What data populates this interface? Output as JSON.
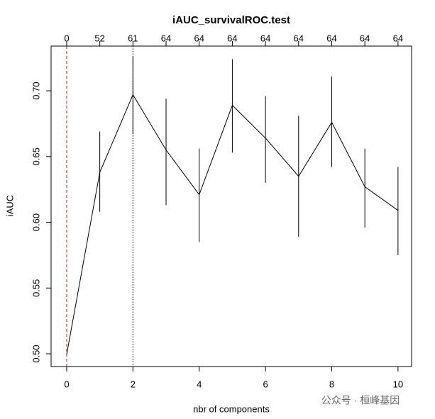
{
  "chart_data": {
    "type": "line",
    "title": "iAUC_survivalROC.test",
    "x_label": "nbr of components",
    "y_label": "iAUC",
    "x": [
      0,
      1,
      2,
      3,
      4,
      5,
      6,
      7,
      8,
      9,
      10
    ],
    "series": [
      {
        "name": "iAUC",
        "color": "#000000",
        "values": [
          0.4995,
          0.638,
          0.697,
          0.655,
          0.621,
          0.689,
          0.664,
          0.635,
          0.676,
          0.627,
          0.609
        ],
        "lower": [
          0.4995,
          0.608,
          0.667,
          0.613,
          0.585,
          0.653,
          0.63,
          0.589,
          0.642,
          0.596,
          0.575
        ],
        "upper": [
          0.4995,
          0.669,
          0.726,
          0.694,
          0.656,
          0.724,
          0.696,
          0.681,
          0.711,
          0.656,
          0.642
        ]
      }
    ],
    "top_labels": [
      "0",
      "52",
      "61",
      "64",
      "64",
      "64",
      "64",
      "64",
      "64",
      "64",
      "64"
    ],
    "vlines": [
      {
        "x": 0,
        "color": "#e41a1c",
        "style": "dashed"
      },
      {
        "x": 2,
        "color": "#000000",
        "style": "dotted"
      }
    ],
    "xlim": [
      -0.47,
      10.41
    ],
    "ylim": [
      0.4903,
      0.734
    ],
    "xticks": [
      0,
      2,
      4,
      6,
      8,
      10
    ],
    "yticks": [
      {
        "value": 0.5,
        "label": "0.50"
      },
      {
        "value": 0.55,
        "label": "0.55"
      },
      {
        "value": 0.6,
        "label": "0.60"
      },
      {
        "value": 0.65,
        "label": "0.65"
      },
      {
        "value": 0.7,
        "label": "0.70"
      }
    ]
  },
  "watermark": "公众号 · 桓峰基因"
}
